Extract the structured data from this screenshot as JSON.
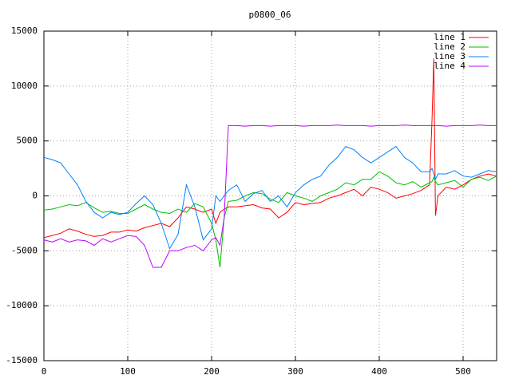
{
  "chart_data": {
    "type": "line",
    "title": "p0800_06",
    "x": [
      0,
      10,
      20,
      30,
      40,
      50,
      60,
      70,
      80,
      90,
      100,
      110,
      120,
      130,
      140,
      150,
      160,
      170,
      180,
      190,
      200,
      205,
      210,
      215,
      220,
      230,
      240,
      250,
      260,
      270,
      280,
      290,
      300,
      310,
      320,
      330,
      340,
      350,
      360,
      370,
      380,
      390,
      400,
      410,
      420,
      430,
      440,
      450,
      460,
      463,
      465,
      467,
      470,
      480,
      490,
      500,
      510,
      520,
      530,
      540
    ],
    "series": [
      {
        "name": "line 1",
        "color": "#ff0000",
        "values": [
          -3800,
          -3600,
          -3400,
          -3000,
          -3200,
          -3500,
          -3700,
          -3600,
          -3300,
          -3300,
          -3100,
          -3200,
          -2900,
          -2700,
          -2500,
          -2800,
          -2000,
          -1000,
          -1200,
          -1500,
          -1200,
          -2500,
          -1500,
          -1200,
          -1000,
          -1000,
          -900,
          -800,
          -1100,
          -1200,
          -2000,
          -1500,
          -600,
          -800,
          -700,
          -600,
          -200,
          0,
          300,
          600,
          0,
          800,
          600,
          300,
          -200,
          0,
          200,
          500,
          1000,
          7000,
          12500,
          -1800,
          0,
          800,
          600,
          1000,
          1500,
          1800,
          2000,
          1800
        ]
      },
      {
        "name": "line 2",
        "color": "#00c000",
        "values": [
          -1300,
          -1200,
          -1000,
          -800,
          -900,
          -600,
          -1100,
          -1500,
          -1400,
          -1600,
          -1600,
          -1200,
          -800,
          -1200,
          -1500,
          -1600,
          -1200,
          -1500,
          -700,
          -1000,
          -2500,
          -4000,
          -6500,
          -2000,
          -500,
          -400,
          0,
          300,
          200,
          -300,
          -600,
          300,
          0,
          -200,
          -500,
          0,
          300,
          600,
          1200,
          1000,
          1500,
          1500,
          2200,
          1800,
          1200,
          1000,
          1300,
          800,
          1200,
          1300,
          1700,
          1300,
          1000,
          1200,
          1400,
          800,
          1500,
          1700,
          1400,
          1800
        ]
      },
      {
        "name": "line 3",
        "color": "#0080ff",
        "values": [
          3500,
          3300,
          3000,
          2000,
          1000,
          -500,
          -1500,
          -2000,
          -1500,
          -1700,
          -1500,
          -700,
          0,
          -800,
          -2500,
          -4800,
          -3500,
          1000,
          -1000,
          -4000,
          -3000,
          0,
          -500,
          0,
          500,
          1000,
          -500,
          200,
          500,
          -500,
          0,
          -1000,
          300,
          1000,
          1500,
          1800,
          2800,
          3500,
          4500,
          4200,
          3500,
          3000,
          3500,
          4000,
          4500,
          3500,
          3000,
          2200,
          2200,
          2500,
          2000,
          1500,
          2000,
          2000,
          2300,
          1800,
          1700,
          2000,
          2300,
          2200
        ]
      },
      {
        "name": "line 4",
        "color": "#c000ff",
        "values": [
          -4000,
          -4200,
          -3900,
          -4200,
          -4000,
          -4100,
          -4500,
          -3900,
          -4200,
          -3900,
          -3600,
          -3700,
          -4500,
          -6500,
          -6500,
          -5000,
          -5000,
          -4700,
          -4500,
          -5000,
          -4000,
          -3800,
          -4500,
          -2000,
          6400,
          6400,
          6350,
          6400,
          6400,
          6350,
          6400,
          6400,
          6400,
          6350,
          6400,
          6400,
          6400,
          6450,
          6400,
          6400,
          6400,
          6350,
          6400,
          6400,
          6400,
          6450,
          6400,
          6400,
          6400,
          6400,
          6400,
          6400,
          6400,
          6350,
          6400,
          6400,
          6400,
          6450,
          6400,
          6400
        ]
      }
    ],
    "xlim": [
      0,
      540
    ],
    "xticks": [
      0,
      100,
      200,
      300,
      400,
      500
    ],
    "ylim": [
      -15000,
      15000
    ],
    "yticks": [
      -15000,
      -10000,
      -5000,
      0,
      5000,
      10000,
      15000
    ],
    "grid": true,
    "legend": "top-right"
  }
}
